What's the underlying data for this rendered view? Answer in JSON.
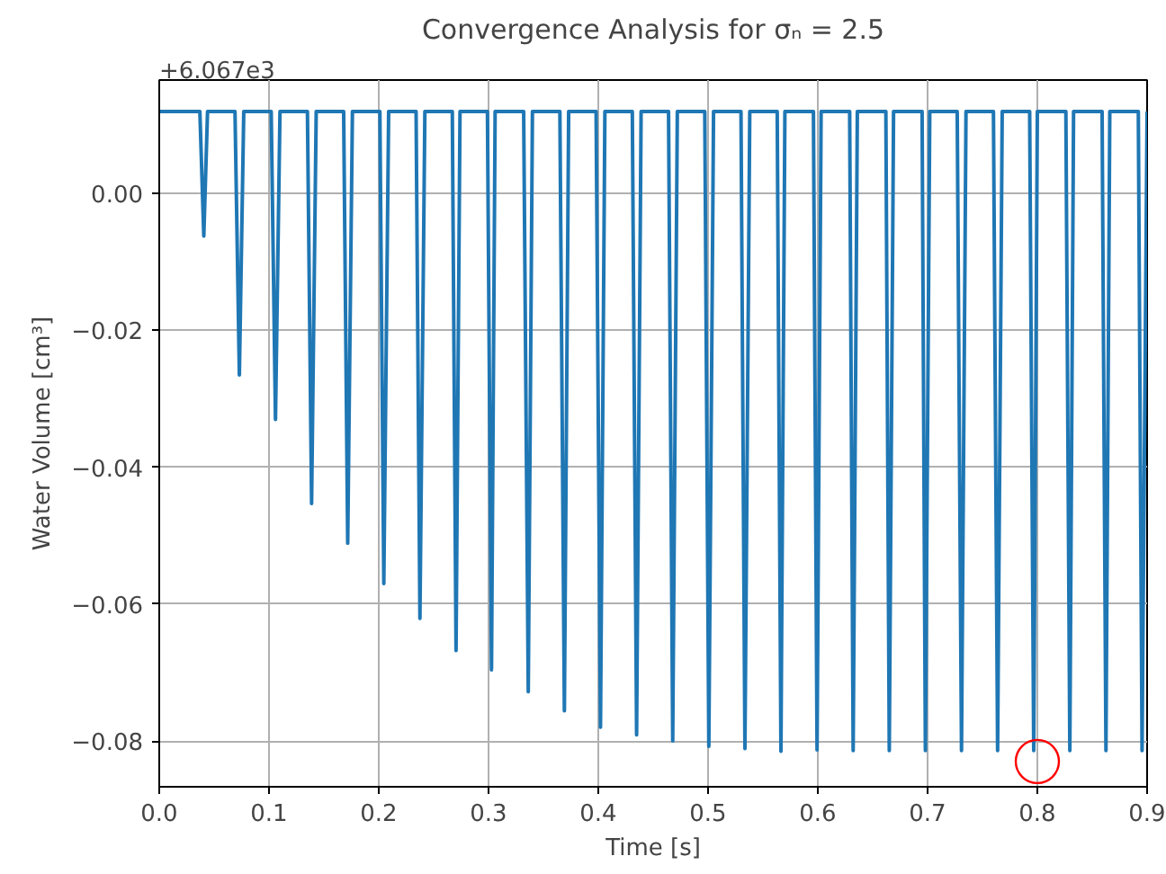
{
  "chart_data": {
    "type": "line",
    "title": "Convergence Analysis for σₙ = 2.5",
    "xlabel": "Time [s]",
    "ylabel": "Water Volume [cm³]",
    "annotations": [
      "+6.067e3"
    ],
    "xlim": [
      0,
      0.9
    ],
    "ylim": [
      -0.0867,
      0.0166
    ],
    "xticks": [
      {
        "value": 0,
        "label": "0.0"
      },
      {
        "value": 0.1,
        "label": "0.1"
      },
      {
        "value": 0.2,
        "label": "0.2"
      },
      {
        "value": 0.3,
        "label": "0.3"
      },
      {
        "value": 0.4,
        "label": "0.4"
      },
      {
        "value": 0.5,
        "label": "0.5"
      },
      {
        "value": 0.6,
        "label": "0.6"
      },
      {
        "value": 0.7,
        "label": "0.7"
      },
      {
        "value": 0.8,
        "label": "0.8"
      },
      {
        "value": 0.9,
        "label": "0.9"
      }
    ],
    "yticks": [
      {
        "value": -0.08,
        "label": "−0.08"
      },
      {
        "value": -0.06,
        "label": "−0.06"
      },
      {
        "value": -0.04,
        "label": "−0.04"
      },
      {
        "value": -0.02,
        "label": "−0.02"
      },
      {
        "value": 0,
        "label": "0.00"
      }
    ],
    "grid": true,
    "line_style": "solid",
    "series": [
      {
        "color": "#1f77b4",
        "marker": "none",
        "x": [
          0,
          0.037,
          0.0406,
          0.044,
          0.069,
          0.073,
          0.077,
          0.102,
          0.1059,
          0.11,
          0.135,
          0.1388,
          0.143,
          0.168,
          0.1717,
          0.176,
          0.201,
          0.2046,
          0.209,
          0.234,
          0.2375,
          0.242,
          0.267,
          0.2704,
          0.274,
          0.299,
          0.3027,
          0.306,
          0.332,
          0.3362,
          0.34,
          0.365,
          0.3691,
          0.373,
          0.398,
          0.402,
          0.406,
          0.431,
          0.4349,
          0.439,
          0.464,
          0.4678,
          0.472,
          0.497,
          0.5007,
          0.505,
          0.53,
          0.5336,
          0.538,
          0.563,
          0.5664,
          0.57,
          0.596,
          0.5993,
          0.603,
          0.629,
          0.6322,
          0.636,
          0.662,
          0.6651,
          0.669,
          0.695,
          0.698,
          0.702,
          0.727,
          0.7309,
          0.735,
          0.76,
          0.7638,
          0.768,
          0.793,
          0.7967,
          0.8,
          0.826,
          0.8296,
          0.833,
          0.859,
          0.8625,
          0.866,
          0.892,
          0.8954,
          0.9
        ],
        "values": [
          0.012,
          0.012,
          -0.0062,
          0.012,
          0.012,
          -0.0265,
          0.012,
          0.012,
          -0.033,
          0.012,
          0.012,
          -0.0453,
          0.012,
          0.012,
          -0.0511,
          0.012,
          0.012,
          -0.057,
          0.012,
          0.012,
          -0.0621,
          0.012,
          0.012,
          -0.0668,
          0.012,
          0.012,
          -0.0696,
          0.012,
          0.012,
          -0.0728,
          0.012,
          0.012,
          -0.0756,
          0.012,
          0.012,
          -0.078,
          0.012,
          0.012,
          -0.0791,
          0.012,
          0.012,
          -0.08,
          0.012,
          0.012,
          -0.0808,
          0.012,
          0.012,
          -0.0811,
          0.012,
          0.012,
          -0.0815,
          0.012,
          0.012,
          -0.0813,
          0.012,
          0.012,
          -0.0814,
          0.012,
          0.012,
          -0.0814,
          0.012,
          0.012,
          -0.0814,
          0.012,
          0.012,
          -0.0814,
          0.012,
          0.012,
          -0.0814,
          0.012,
          0.012,
          -0.0814,
          0.012,
          0.012,
          -0.0814,
          0.012,
          0.012,
          -0.0814,
          0.012,
          0.012,
          -0.0814,
          0.012
        ]
      },
      {
        "type": "scatter",
        "color": "#ff0000",
        "marker": "circle",
        "x": [
          0.8
        ],
        "values": [
          -0.083
        ]
      }
    ]
  }
}
